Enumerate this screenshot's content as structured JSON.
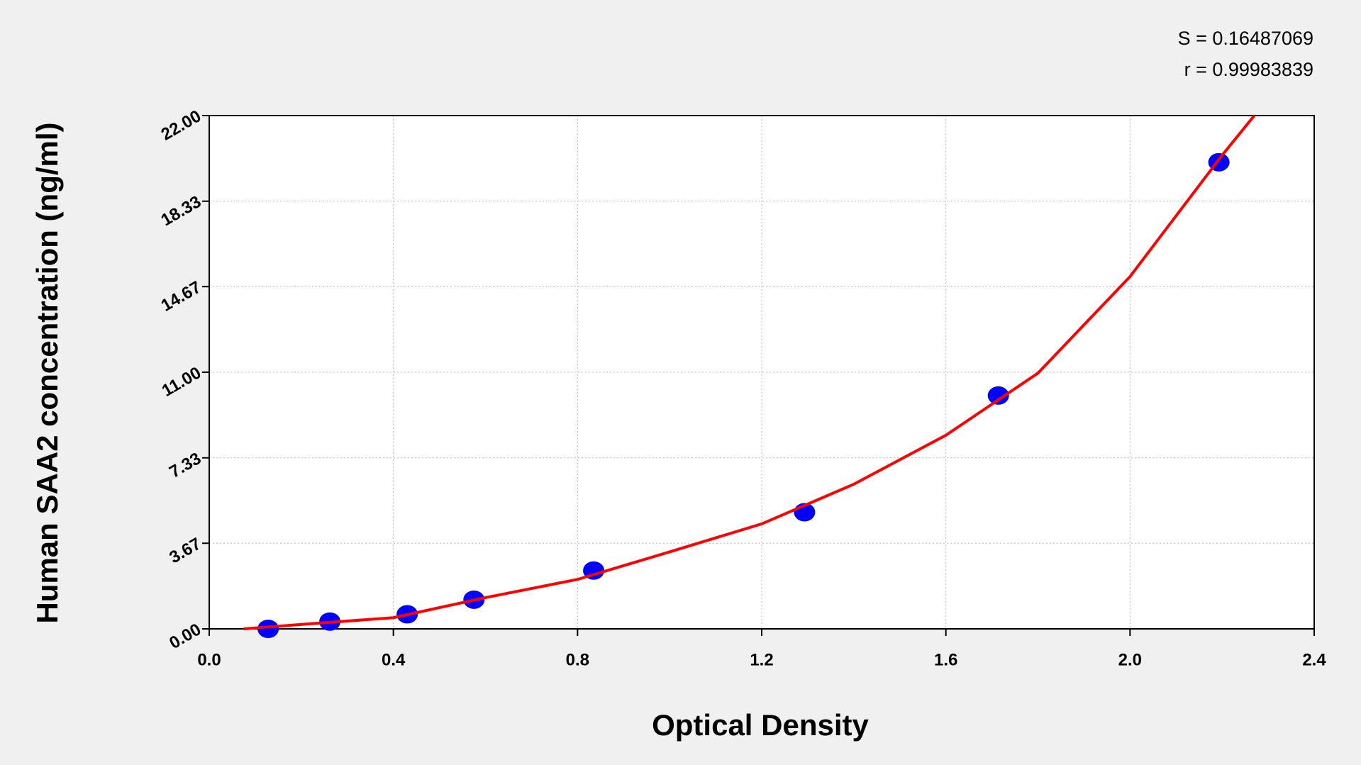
{
  "chart_data": {
    "type": "scatter",
    "annotations": [
      "S = 0.16487069",
      "r = 0.99983839"
    ],
    "xlabel": "Optical Density",
    "ylabel": "Human SAA2 concentration (ng/ml)",
    "xlim": [
      0,
      2.4
    ],
    "ylim": [
      0,
      22
    ],
    "xticks": [
      {
        "value": 0,
        "label": "0.0"
      },
      0.4,
      0.8,
      1.2,
      1.6,
      {
        "value": 2,
        "label": "2.0"
      },
      2.4
    ],
    "yticks": [
      {
        "value": 0,
        "label": "0.00"
      },
      3.67,
      7.33,
      {
        "value": 11,
        "label": "11.00"
      },
      14.67,
      18.33,
      {
        "value": 22,
        "label": "22.00"
      }
    ],
    "grid": true,
    "series": [
      {
        "type": "scatter",
        "color": "#0000ff",
        "x": [
          0.128,
          0.262,
          0.43,
          0.575,
          0.835,
          1.293,
          1.714,
          2.193
        ],
        "values": [
          0,
          0.312,
          0.625,
          1.25,
          2.5,
          5,
          10,
          20
        ]
      },
      {
        "type": "line",
        "color": "#ff0000",
        "x": [
          0.075,
          0.2,
          0.4,
          0.6,
          0.8,
          1.0,
          1.2,
          1.4,
          1.6,
          1.8,
          2.0,
          2.2,
          2.27
        ],
        "values": [
          0,
          0.19,
          0.48,
          1.34,
          2.12,
          3.3,
          4.5,
          6.2,
          8.3,
          10.96,
          15.1,
          20.3,
          22
        ]
      }
    ]
  }
}
